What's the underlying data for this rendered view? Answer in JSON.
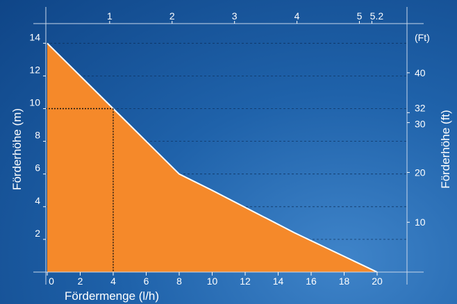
{
  "chart_data": {
    "type": "area",
    "x": [
      0,
      4,
      8,
      10,
      15,
      20
    ],
    "y": [
      14,
      10,
      6,
      5,
      2.4,
      0
    ],
    "xlim": [
      0,
      21.5
    ],
    "ylim": [
      0,
      14
    ],
    "xlabel": "Fördermenge (l/h)",
    "ylabel": "Förderhöhe (m)",
    "ylabel_right": "Förderhöhe (ft)",
    "right_axis_unit": "(Ft)",
    "x_ticks": [
      "0",
      "2",
      "4",
      "6",
      "8",
      "10",
      "12",
      "14",
      "16",
      "18",
      "20"
    ],
    "x_tick_values": [
      0,
      2,
      4,
      6,
      8,
      10,
      12,
      14,
      16,
      18,
      20
    ],
    "y_ticks": [
      "2",
      "4",
      "6",
      "8",
      "10",
      "12",
      "14"
    ],
    "y_tick_values": [
      2,
      4,
      6,
      8,
      10,
      12,
      14
    ],
    "top_ticks": [
      "1",
      "2",
      "3",
      "4",
      "5",
      "5.2"
    ],
    "top_tick_values": [
      3.785,
      7.57,
      11.355,
      15.14,
      18.925,
      19.68
    ],
    "right_ticks": [
      "10",
      "20",
      "30",
      "32",
      "40"
    ],
    "right_tick_values": [
      10,
      20,
      30,
      32,
      40
    ],
    "right_ylim_ft": [
      0,
      45.93
    ],
    "reference_point": {
      "x": 4,
      "y": 10
    },
    "colors": {
      "fill": "#f5892a",
      "curve": "#ffffff",
      "reference": "#111111"
    },
    "grid": true
  }
}
